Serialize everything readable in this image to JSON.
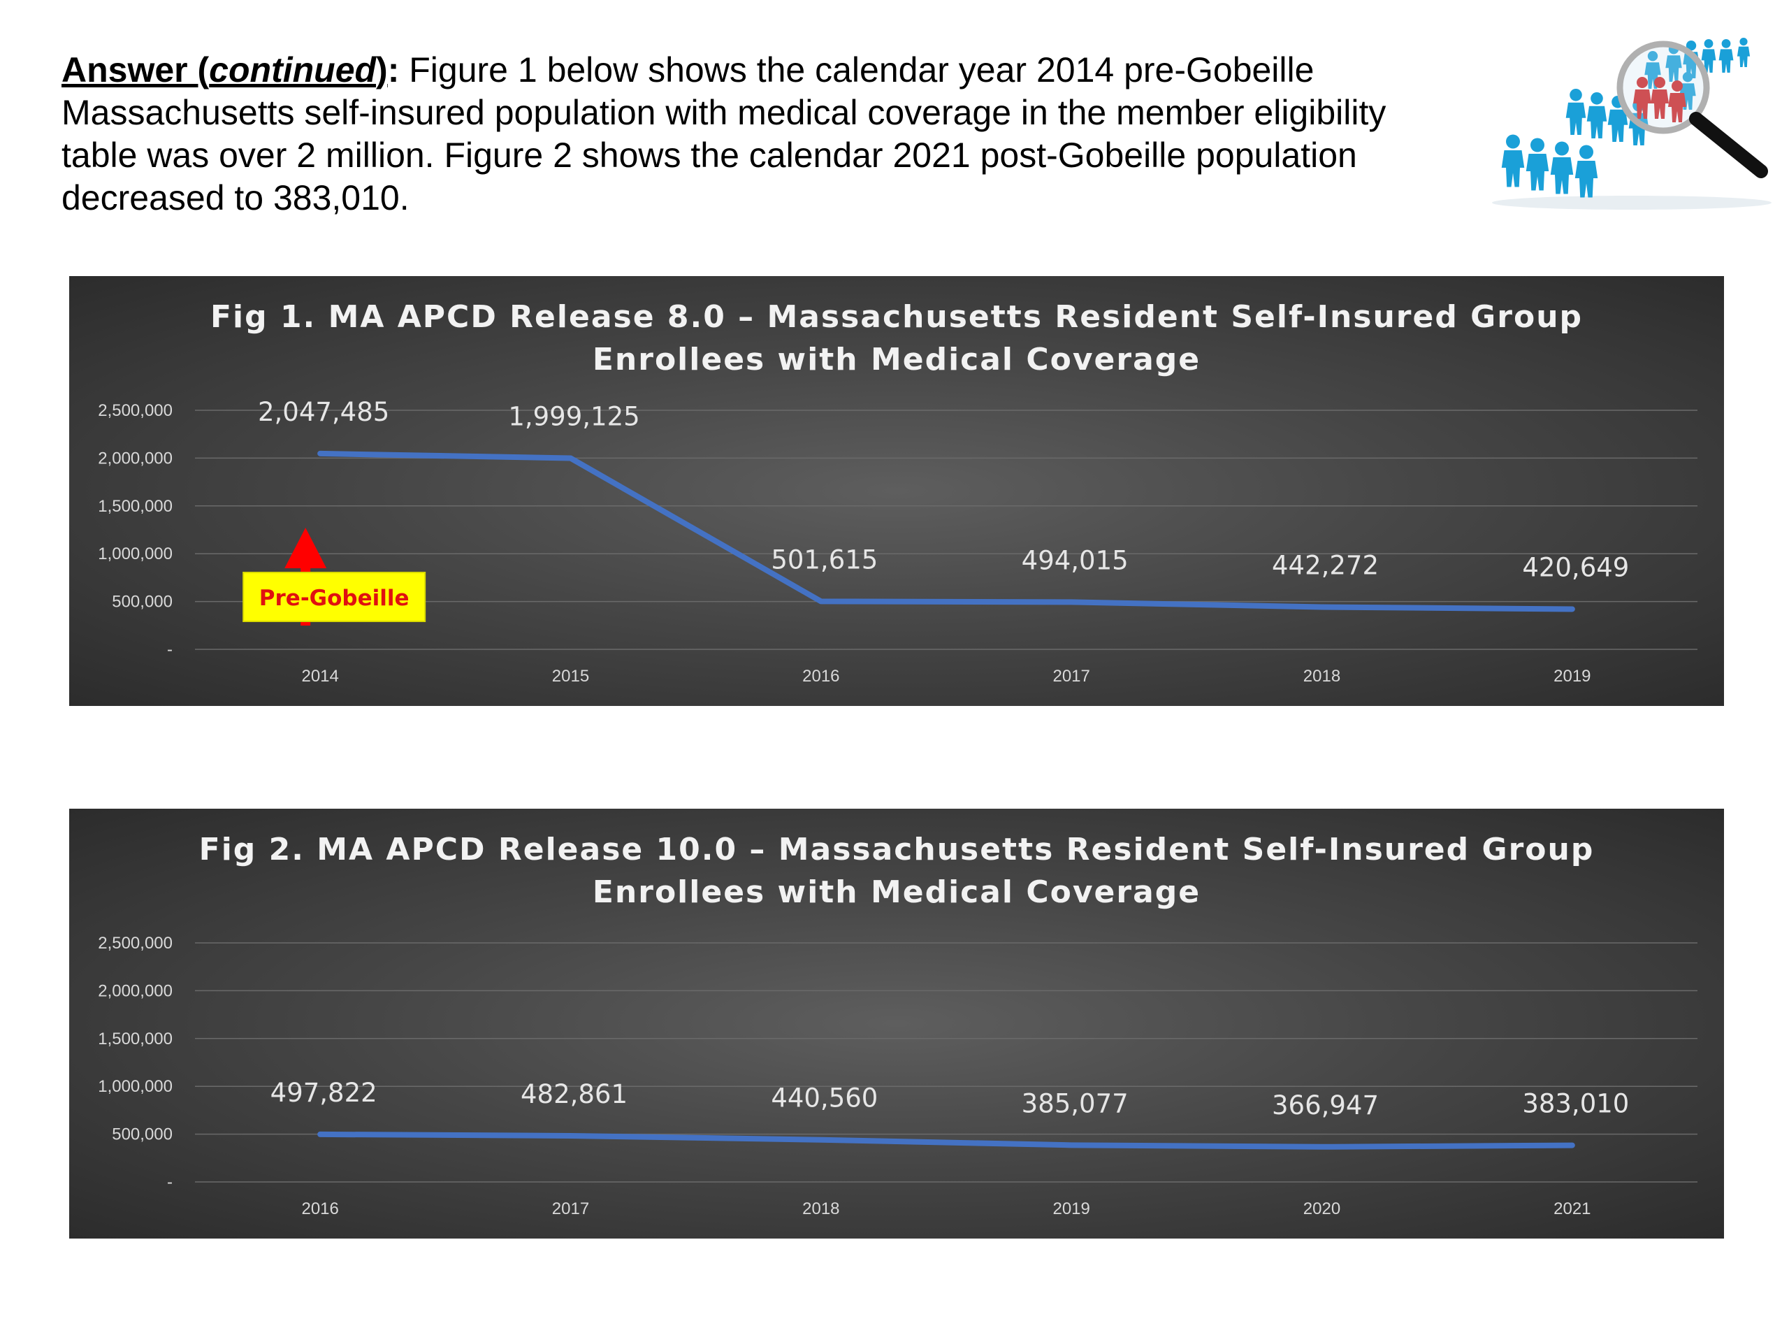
{
  "intro": {
    "lead_bold": "Answer (",
    "lead_italic": "continued",
    "lead_end": ")",
    "colon": ":",
    "text": " Figure 1 below shows the calendar year 2014 pre-Gobeille Massachusetts self-insured population with medical coverage in the member eligibility table was over 2 million. Figure 2 shows the calendar 2021 post-Gobeille population decreased to 383,010."
  },
  "graphic": {
    "icon": "people-magnifier-icon"
  },
  "chart_data": [
    {
      "type": "line",
      "title_lines": [
        "Fig 1. MA APCD Release 8.0  – Massachusetts Resident Self-Insured Group",
        "Enrollees with Medical Coverage"
      ],
      "categories": [
        "2014",
        "2015",
        "2016",
        "2017",
        "2018",
        "2019"
      ],
      "values": [
        2047485,
        1999125,
        501615,
        494015,
        442272,
        420649
      ],
      "data_labels": [
        "2,047,485",
        "1,999,125",
        "501,615",
        "494,015",
        "442,272",
        "420,649"
      ],
      "y_ticks": [
        "-",
        "500,000",
        "1,000,000",
        "1,500,000",
        "2,000,000",
        "2,500,000"
      ],
      "ylim": [
        0,
        2500000
      ],
      "grid": true,
      "line_color": "#4472c4",
      "annotation": {
        "text": "Pre-Gobeille",
        "category": "2014",
        "arrow_color": "#ff0000",
        "box_color": "#ffff00"
      }
    },
    {
      "type": "line",
      "title_lines": [
        "Fig 2. MA APCD Release 10.0  – Massachusetts Resident Self-Insured Group",
        "Enrollees with Medical Coverage"
      ],
      "categories": [
        "2016",
        "2017",
        "2018",
        "2019",
        "2020",
        "2021"
      ],
      "values": [
        497822,
        482861,
        440560,
        385077,
        366947,
        383010
      ],
      "data_labels": [
        "497,822",
        "482,861",
        "440,560",
        "385,077",
        "366,947",
        "383,010"
      ],
      "y_ticks": [
        "-",
        "500,000",
        "1,000,000",
        "1,500,000",
        "2,000,000",
        "2,500,000"
      ],
      "ylim": [
        0,
        2500000
      ],
      "grid": true,
      "line_color": "#4472c4"
    }
  ]
}
